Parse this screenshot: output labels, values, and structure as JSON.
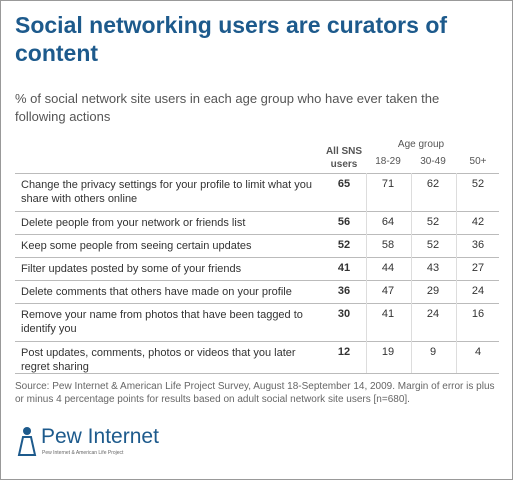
{
  "header": {
    "title": "Social networking users are curators of content",
    "subtitle": "% of social network site users in each age group who have ever taken the following actions"
  },
  "table": {
    "group_header": "Age group",
    "columns": [
      "All SNS users",
      "18-29",
      "30-49",
      "50+"
    ],
    "rows": [
      {
        "label": "Change the privacy settings for your profile to limit what you share with others online",
        "values": [
          65,
          71,
          62,
          52
        ]
      },
      {
        "label": "Delete people from your network or friends list",
        "values": [
          56,
          64,
          52,
          42
        ]
      },
      {
        "label": "Keep some people from seeing certain updates",
        "values": [
          52,
          58,
          52,
          36
        ]
      },
      {
        "label": "Filter updates posted by some of your friends",
        "values": [
          41,
          44,
          43,
          27
        ]
      },
      {
        "label": "Delete comments that others have made on your profile",
        "values": [
          36,
          47,
          29,
          24
        ]
      },
      {
        "label": "Remove your name from photos that have been tagged to identify you",
        "values": [
          30,
          41,
          24,
          16
        ]
      },
      {
        "label": "Post updates, comments, photos or videos that you later regret sharing",
        "values": [
          12,
          19,
          9,
          4
        ]
      }
    ]
  },
  "footer": {
    "source": "Source: Pew Internet & American Life Project Survey, August 18-September 14, 2009. Margin of error is plus or minus 4 percentage points for results based on adult social network site users [n=680].",
    "logo": "Pew Internet",
    "logo_sub": "Pew Internet & American Life Project"
  }
}
